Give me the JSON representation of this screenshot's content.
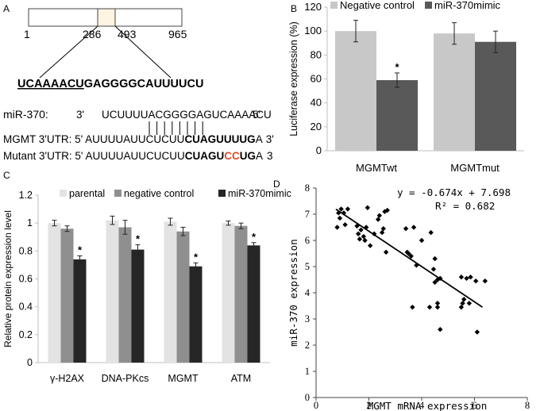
{
  "panel_a": {
    "letter": "A",
    "positions": [
      "1",
      "286",
      "493",
      "965"
    ],
    "target_seq": "UCAAAACUGAGGGGCAUUUUCU",
    "mir_label": "miR-370:",
    "mir_3": "3'",
    "mir_seq": "UCUUUUACGGGGAGUCAAAACU",
    "mir_5": "5'",
    "wt_label": "MGMT 3'UTR: 5'",
    "wt_plain": "AUUUUAUUCUCUU",
    "wt_bold": "CUAGUUUUG",
    "wt_end": "A",
    "wt_3": "3'",
    "mut_label": "Mutant 3'UTR: 5'",
    "mut_plain": "AUUUUAUUCUCUU",
    "mut_bold1": "CUAGU",
    "mut_red": "CC",
    "mut_bold2": "UG",
    "mut_end": "A",
    "mut_3": "3",
    "colors": {
      "box_fill": "#ffffff",
      "highlight_fill": "#fdf4e1",
      "mutation": "#d9502a"
    }
  },
  "chart_data": [
    {
      "panel": "B",
      "type": "bar",
      "categories": [
        "MGMTwt",
        "MGMTmut"
      ],
      "series": [
        {
          "name": "Negative control",
          "values": [
            100,
            98
          ],
          "errors": [
            9,
            9
          ],
          "color": "#c8c8c8"
        },
        {
          "name": "miR-370mimic",
          "values": [
            59,
            91
          ],
          "errors": [
            6,
            9
          ],
          "color": "#595959"
        }
      ],
      "significance": [
        {
          "category": 0,
          "series": 1,
          "label": "*"
        }
      ],
      "ylabel": "Luciferase expression (%)",
      "ylim": [
        0,
        120
      ],
      "yticks": [
        0,
        20,
        40,
        60,
        80,
        100,
        120
      ],
      "legend": "top"
    },
    {
      "panel": "C",
      "type": "bar",
      "categories": [
        "γ-H2AX",
        "DNA-PKcs",
        "MGMT",
        "ATM"
      ],
      "series": [
        {
          "name": "parental",
          "values": [
            1.0,
            1.02,
            1.01,
            1.0
          ],
          "errors": [
            0.02,
            0.03,
            0.025,
            0.015
          ],
          "color": "#e3e3e3"
        },
        {
          "name": "negative control",
          "values": [
            0.96,
            0.97,
            0.94,
            0.98
          ],
          "errors": [
            0.02,
            0.05,
            0.03,
            0.02
          ],
          "color": "#8f8f8f"
        },
        {
          "name": "miR-370mimic",
          "values": [
            0.74,
            0.81,
            0.69,
            0.84
          ],
          "errors": [
            0.025,
            0.035,
            0.025,
            0.02
          ],
          "color": "#262626"
        }
      ],
      "significance": [
        {
          "category": 0,
          "series": 2,
          "label": "*"
        },
        {
          "category": 1,
          "series": 2,
          "label": "*"
        },
        {
          "category": 2,
          "series": 2,
          "label": "*"
        },
        {
          "category": 3,
          "series": 2,
          "label": "*"
        }
      ],
      "ylabel": "Relative protein expression level",
      "ylim": [
        0.0,
        1.2
      ],
      "yticks": [
        "0",
        "0.2",
        "0.4",
        "0.6",
        "0.8",
        "1",
        "1.2"
      ],
      "legend": "top"
    },
    {
      "panel": "D",
      "type": "scatter",
      "xlabel": "MGMT mRNA expression",
      "ylabel": "miR-370 expression",
      "xlim": [
        0,
        8
      ],
      "ylim": [
        0,
        8
      ],
      "xticks": [
        0,
        2,
        4,
        6,
        8
      ],
      "yticks": [
        0,
        1,
        2,
        3,
        4,
        5,
        6,
        7,
        8
      ],
      "equation": "y = -0.674x + 7.698",
      "r2": "R² = 0.682",
      "trendline": {
        "x": [
          0.75,
          6.3
        ],
        "slope": -0.674,
        "intercept": 7.698
      },
      "points": [
        [
          0.8,
          6.5
        ],
        [
          0.85,
          7.05
        ],
        [
          0.9,
          6.85
        ],
        [
          0.95,
          7.2
        ],
        [
          1.05,
          7.05
        ],
        [
          1.1,
          6.6
        ],
        [
          1.2,
          7.2
        ],
        [
          1.55,
          6.55
        ],
        [
          1.6,
          6.25
        ],
        [
          1.65,
          6.05
        ],
        [
          1.7,
          6.4
        ],
        [
          1.8,
          6.15
        ],
        [
          1.85,
          6.0
        ],
        [
          1.9,
          6.5
        ],
        [
          1.95,
          7.25
        ],
        [
          2.05,
          5.8
        ],
        [
          2.2,
          6.25
        ],
        [
          2.35,
          6.8
        ],
        [
          2.4,
          6.95
        ],
        [
          2.5,
          6.3
        ],
        [
          2.55,
          6.45
        ],
        [
          2.6,
          7.1
        ],
        [
          2.65,
          5.55
        ],
        [
          2.7,
          7.15
        ],
        [
          3.4,
          6.45
        ],
        [
          3.45,
          5.55
        ],
        [
          3.5,
          5.5
        ],
        [
          3.6,
          5.4
        ],
        [
          3.65,
          3.45
        ],
        [
          3.7,
          6.5
        ],
        [
          3.8,
          5.05
        ],
        [
          4.0,
          6.0
        ],
        [
          4.3,
          3.45
        ],
        [
          4.35,
          6.3
        ],
        [
          4.45,
          4.9
        ],
        [
          4.5,
          4.4
        ],
        [
          4.5,
          5.3
        ],
        [
          4.6,
          4.5
        ],
        [
          4.6,
          3.45
        ],
        [
          4.6,
          3.6
        ],
        [
          4.7,
          2.6
        ],
        [
          4.7,
          4.55
        ],
        [
          5.5,
          3.45
        ],
        [
          5.5,
          4.6
        ],
        [
          5.55,
          3.6
        ],
        [
          5.6,
          3.75
        ],
        [
          5.7,
          4.55
        ],
        [
          5.8,
          3.6
        ],
        [
          5.85,
          4.6
        ],
        [
          6.05,
          4.45
        ],
        [
          6.1,
          2.5
        ],
        [
          6.4,
          4.45
        ]
      ]
    }
  ]
}
